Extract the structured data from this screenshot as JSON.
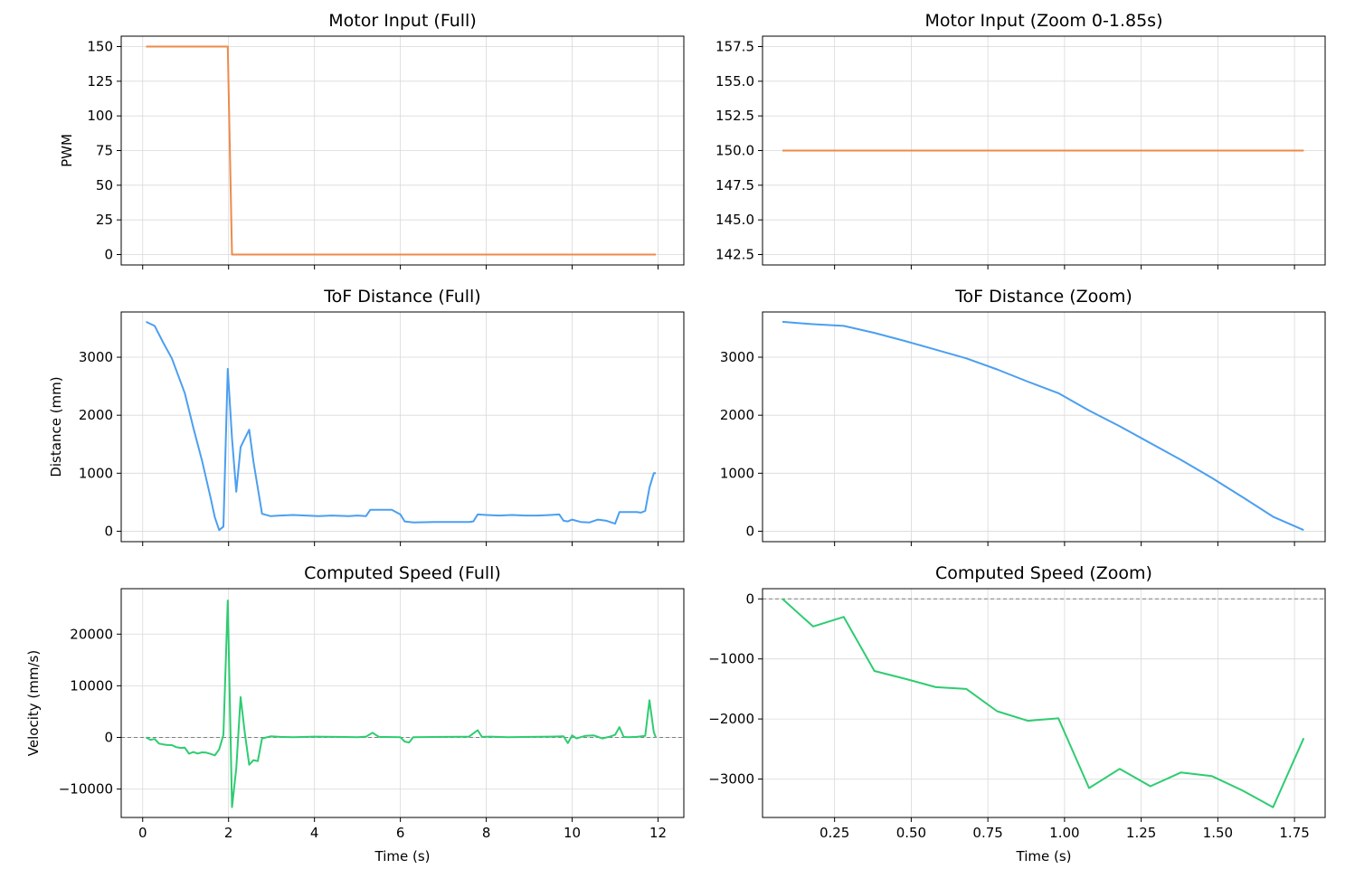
{
  "figure": {
    "shared_xlabel": "Time (s)"
  },
  "colors": {
    "motor": "#ee8a4a",
    "tof": "#4b9ff0",
    "speed": "#2ecc71",
    "zero_line": "#808080"
  },
  "chart_data": [
    {
      "id": "motor_full",
      "type": "line",
      "title": "Motor Input (Full)",
      "xlabel": "",
      "ylabel": "PWM",
      "xlim": [
        -0.5,
        12.6
      ],
      "ylim": [
        -7.5,
        157.5
      ],
      "grid": true,
      "color": "#ee8a4a",
      "xticks": [
        0,
        2,
        4,
        6,
        8,
        10,
        12
      ],
      "xtick_labels": [],
      "yticks": [
        0,
        25,
        50,
        75,
        100,
        125,
        150
      ],
      "ytick_labels": [
        "0",
        "25",
        "50",
        "75",
        "100",
        "125",
        "150"
      ],
      "x": [
        0.08,
        1.98,
        2.08,
        11.95
      ],
      "y": [
        150,
        150,
        0,
        0
      ]
    },
    {
      "id": "motor_zoom",
      "type": "line",
      "title": "Motor Input (Zoom 0-1.85s)",
      "xlabel": "",
      "ylabel": "",
      "xlim": [
        0.015,
        1.85
      ],
      "ylim": [
        141.75,
        158.25
      ],
      "grid": true,
      "color": "#ee8a4a",
      "xticks": [
        0.25,
        0.5,
        0.75,
        1.0,
        1.25,
        1.5,
        1.75
      ],
      "xtick_labels": [],
      "yticks": [
        142.5,
        145.0,
        147.5,
        150.0,
        152.5,
        155.0,
        157.5
      ],
      "ytick_labels": [
        "142.5",
        "145.0",
        "147.5",
        "150.0",
        "152.5",
        "155.0",
        "157.5"
      ],
      "x": [
        0.08,
        1.78
      ],
      "y": [
        150,
        150
      ]
    },
    {
      "id": "tof_full",
      "type": "line",
      "title": "ToF Distance (Full)",
      "xlabel": "",
      "ylabel": "Distance (mm)",
      "xlim": [
        -0.5,
        12.6
      ],
      "ylim": [
        -180,
        3780
      ],
      "grid": true,
      "color": "#4b9ff0",
      "xticks": [
        0,
        2,
        4,
        6,
        8,
        10,
        12
      ],
      "xtick_labels": [],
      "yticks": [
        0,
        1000,
        2000,
        3000
      ],
      "ytick_labels": [
        "0",
        "1000",
        "2000",
        "3000"
      ],
      "x": [
        0.08,
        0.28,
        0.48,
        0.68,
        0.98,
        1.18,
        1.38,
        1.58,
        1.68,
        1.78,
        1.88,
        1.98,
        2.08,
        2.18,
        2.28,
        2.38,
        2.48,
        2.58,
        2.78,
        2.98,
        3.2,
        3.5,
        3.8,
        4.1,
        4.4,
        4.8,
        5.0,
        5.2,
        5.3,
        5.5,
        5.8,
        6.0,
        6.1,
        6.3,
        6.8,
        7.3,
        7.6,
        7.7,
        7.8,
        8.0,
        8.3,
        8.6,
        8.9,
        9.2,
        9.5,
        9.7,
        9.8,
        9.9,
        10.0,
        10.2,
        10.4,
        10.6,
        10.8,
        11.0,
        11.1,
        11.3,
        11.5,
        11.6,
        11.7,
        11.8,
        11.9,
        11.95
      ],
      "y": [
        3610,
        3540,
        3250,
        2980,
        2380,
        1780,
        1220,
        580,
        240,
        20,
        80,
        2800,
        1600,
        680,
        1450,
        1600,
        1750,
        1200,
        300,
        260,
        270,
        280,
        270,
        260,
        270,
        260,
        270,
        260,
        370,
        370,
        370,
        290,
        170,
        150,
        160,
        160,
        160,
        170,
        290,
        280,
        270,
        280,
        270,
        270,
        280,
        290,
        180,
        170,
        200,
        160,
        150,
        200,
        180,
        130,
        330,
        330,
        330,
        320,
        350,
        750,
        1000,
        1000
      ]
    },
    {
      "id": "tof_zoom",
      "type": "line",
      "title": "ToF Distance (Zoom)",
      "xlabel": "",
      "ylabel": "",
      "xlim": [
        0.015,
        1.85
      ],
      "ylim": [
        -180,
        3780
      ],
      "grid": true,
      "color": "#4b9ff0",
      "xticks": [
        0.25,
        0.5,
        0.75,
        1.0,
        1.25,
        1.5,
        1.75
      ],
      "xtick_labels": [],
      "yticks": [
        0,
        1000,
        2000,
        3000
      ],
      "ytick_labels": [
        "0",
        "1000",
        "2000",
        "3000"
      ],
      "x": [
        0.08,
        0.18,
        0.28,
        0.38,
        0.48,
        0.58,
        0.68,
        0.78,
        0.88,
        0.98,
        1.08,
        1.18,
        1.28,
        1.38,
        1.48,
        1.58,
        1.68,
        1.78
      ],
      "y": [
        3610,
        3570,
        3540,
        3420,
        3280,
        3130,
        2980,
        2790,
        2580,
        2380,
        2080,
        1810,
        1520,
        1230,
        920,
        590,
        250,
        20
      ]
    },
    {
      "id": "speed_full",
      "type": "line",
      "title": "Computed Speed (Full)",
      "xlabel": "Time (s)",
      "ylabel": "Velocity (mm/s)",
      "xlim": [
        -0.5,
        12.6
      ],
      "ylim": [
        -15500,
        28800
      ],
      "grid": true,
      "color": "#2ecc71",
      "zero_line": true,
      "xticks": [
        0,
        2,
        4,
        6,
        8,
        10,
        12
      ],
      "xtick_labels": [
        "0",
        "2",
        "4",
        "6",
        "8",
        "10",
        "12"
      ],
      "yticks": [
        -10000,
        0,
        10000,
        20000
      ],
      "ytick_labels": [
        "−10000",
        "0",
        "10000",
        "20000"
      ],
      "x": [
        0.08,
        0.18,
        0.28,
        0.38,
        0.48,
        0.58,
        0.68,
        0.78,
        0.88,
        0.98,
        1.08,
        1.18,
        1.28,
        1.38,
        1.48,
        1.58,
        1.68,
        1.78,
        1.88,
        1.98,
        2.08,
        2.18,
        2.28,
        2.38,
        2.48,
        2.58,
        2.68,
        2.78,
        2.98,
        3.2,
        3.5,
        4.0,
        4.5,
        5.0,
        5.2,
        5.35,
        5.5,
        6.0,
        6.1,
        6.2,
        6.3,
        7.0,
        7.6,
        7.8,
        7.9,
        8.1,
        8.5,
        9.0,
        9.5,
        9.8,
        9.9,
        10.0,
        10.1,
        10.3,
        10.5,
        10.7,
        10.9,
        11.0,
        11.1,
        11.2,
        11.3,
        11.5,
        11.7,
        11.8,
        11.9,
        11.95
      ],
      "y": [
        0,
        -460,
        -300,
        -1200,
        -1350,
        -1480,
        -1500,
        -1870,
        -2030,
        -1990,
        -3150,
        -2830,
        -3120,
        -2890,
        -2950,
        -3190,
        -3470,
        -2320,
        500,
        26500,
        -13500,
        -6000,
        7800,
        800,
        -5300,
        -4400,
        -4600,
        -200,
        200,
        100,
        50,
        150,
        100,
        50,
        150,
        900,
        100,
        50,
        -800,
        -1000,
        50,
        100,
        150,
        1400,
        100,
        150,
        50,
        100,
        150,
        200,
        -1100,
        400,
        -200,
        300,
        400,
        -200,
        200,
        500,
        2000,
        100,
        50,
        100,
        300,
        7200,
        1000,
        0
      ]
    },
    {
      "id": "speed_zoom",
      "type": "line",
      "title": "Computed Speed (Zoom)",
      "xlabel": "Time (s)",
      "ylabel": "",
      "xlim": [
        0.015,
        1.85
      ],
      "ylim": [
        -3640,
        170
      ],
      "grid": true,
      "color": "#2ecc71",
      "zero_line": true,
      "xticks": [
        0.25,
        0.5,
        0.75,
        1.0,
        1.25,
        1.5,
        1.75
      ],
      "xtick_labels": [
        "0.25",
        "0.50",
        "0.75",
        "1.00",
        "1.25",
        "1.50",
        "1.75"
      ],
      "yticks": [
        -3000,
        -2000,
        -1000,
        0
      ],
      "ytick_labels": [
        "−3000",
        "−2000",
        "−1000",
        "0"
      ],
      "x": [
        0.08,
        0.18,
        0.28,
        0.38,
        0.48,
        0.58,
        0.68,
        0.78,
        0.88,
        0.98,
        1.08,
        1.18,
        1.28,
        1.38,
        1.48,
        1.58,
        1.68,
        1.78
      ],
      "y": [
        0,
        -460,
        -300,
        -1200,
        -1330,
        -1470,
        -1500,
        -1870,
        -2030,
        -1990,
        -3150,
        -2830,
        -3120,
        -2890,
        -2950,
        -3190,
        -3470,
        -2320
      ]
    }
  ]
}
